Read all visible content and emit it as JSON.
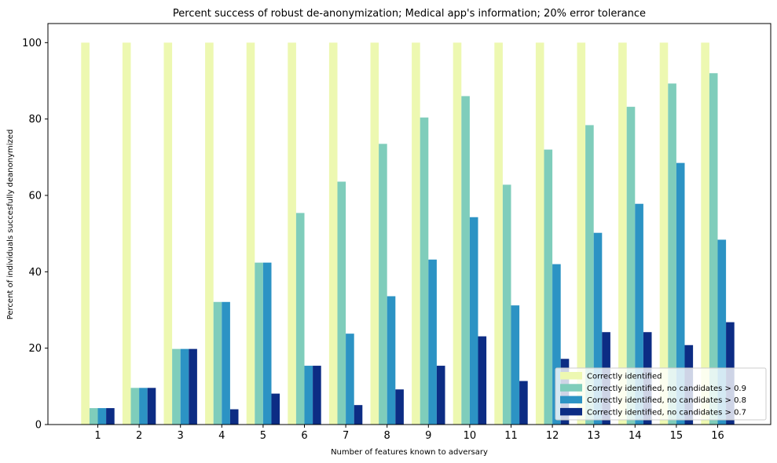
{
  "chart_data": {
    "type": "bar",
    "title": "Percent success of robust de-anonymization; Medical app's information; 20% error tolerance",
    "xlabel": "Number of features known to adversary",
    "ylabel": "Percent of individuals succesfully deanonymized",
    "ylim": [
      0,
      105
    ],
    "yticks": [
      0,
      20,
      40,
      60,
      80,
      100
    ],
    "categories": [
      "1",
      "2",
      "3",
      "4",
      "5",
      "6",
      "7",
      "8",
      "9",
      "10",
      "11",
      "12",
      "13",
      "14",
      "15",
      "16"
    ],
    "legend_position": "lower-right",
    "grid": false,
    "series": [
      {
        "name": "Correctly identified",
        "color": "#edf8b1",
        "values": [
          100,
          100,
          100,
          100,
          100,
          100,
          100,
          100,
          100,
          100,
          100,
          100,
          100,
          100,
          100,
          100
        ]
      },
      {
        "name": "Correctly identified, no candidates > 0.9",
        "color": "#7fcdbb",
        "values": [
          4.3,
          9.6,
          19.8,
          32.1,
          42.4,
          55.4,
          63.6,
          73.5,
          80.4,
          86.0,
          62.8,
          72.0,
          78.4,
          83.2,
          89.3,
          92.0
        ]
      },
      {
        "name": "Correctly identified, no candidates > 0.8",
        "color": "#2c93c4",
        "values": [
          4.3,
          9.6,
          19.8,
          32.1,
          42.4,
          15.4,
          23.8,
          33.6,
          43.2,
          54.3,
          31.2,
          42.0,
          50.2,
          57.8,
          68.5,
          48.4
        ]
      },
      {
        "name": "Correctly identified, no candidates > 0.7",
        "color": "#0c2c84",
        "values": [
          4.3,
          9.6,
          19.8,
          4.0,
          8.1,
          15.4,
          5.1,
          9.2,
          15.4,
          23.1,
          11.4,
          17.2,
          24.2,
          24.2,
          20.8,
          26.8
        ]
      }
    ]
  }
}
